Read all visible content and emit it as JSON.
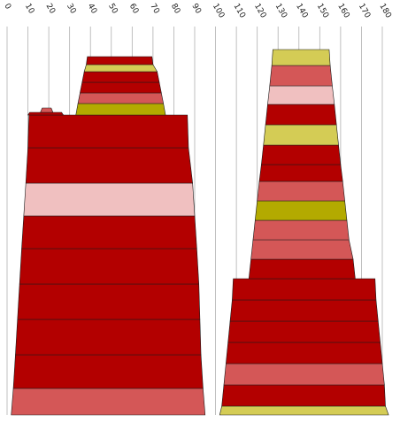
{
  "chart_data": {
    "type": "bar",
    "xlim": [
      0,
      180
    ],
    "x_ticks": [
      0,
      10,
      20,
      30,
      40,
      50,
      60,
      70,
      80,
      90,
      100,
      110,
      120,
      130,
      140,
      150,
      160,
      170,
      180
    ],
    "grid": "vertical",
    "legend": "none",
    "description_of_marks": "stacked layers; each layer spans from x_start to x_end in data units",
    "stacks": [
      {
        "layers": [
          {
            "x_start": 2,
            "x_end": 95,
            "color": "#d45757"
          },
          {
            "x_start": 3,
            "x_end": 94,
            "color": "#b30000"
          },
          {
            "x_start": 4,
            "x_end": 93,
            "color": "#b30000"
          },
          {
            "x_start": 5,
            "x_end": 92.5,
            "color": "#b30000"
          },
          {
            "x_start": 6,
            "x_end": 92,
            "color": "#b30000"
          },
          {
            "x_start": 7,
            "x_end": 91,
            "color": "#b30000"
          },
          {
            "x_start": 8,
            "x_end": 90,
            "color": "#f0c0c0"
          },
          {
            "x_start": 9,
            "x_end": 89,
            "color": "#b30000"
          },
          {
            "x_start": 10,
            "x_end": 87,
            "color": "#b30000"
          },
          {
            "x_start": 33,
            "x_end": 76,
            "color": "#b3aa00"
          },
          {
            "x_start": 34,
            "x_end": 75,
            "color": "#d45757"
          },
          {
            "x_start": 35,
            "x_end": 74,
            "color": "#b30000"
          },
          {
            "x_start": 36,
            "x_end": 73,
            "color": "#b30000"
          },
          {
            "x_start": 37,
            "x_end": 72,
            "color": "#d4cc55"
          },
          {
            "x_start": 38,
            "x_end": 70,
            "color": "#b30000"
          }
        ],
        "cap_marks": [
          {
            "x_start": 10,
            "x_end": 27,
            "color": "#b30000"
          },
          {
            "x_start": 16,
            "x_end": 22,
            "color": "#d45757"
          }
        ]
      },
      {
        "layers": [
          {
            "x_start": 102,
            "x_end": 183,
            "color": "#d4cc55"
          },
          {
            "x_start": 103,
            "x_end": 181.5,
            "color": "#b30000"
          },
          {
            "x_start": 104,
            "x_end": 181,
            "color": "#d45757"
          },
          {
            "x_start": 105,
            "x_end": 180,
            "color": "#b30000"
          },
          {
            "x_start": 106,
            "x_end": 179,
            "color": "#b30000"
          },
          {
            "x_start": 107,
            "x_end": 178,
            "color": "#b30000"
          },
          {
            "x_start": 108,
            "x_end": 177,
            "color": "#b30000"
          },
          {
            "x_start": 116,
            "x_end": 167,
            "color": "#b30000"
          },
          {
            "x_start": 117,
            "x_end": 166,
            "color": "#d45757"
          },
          {
            "x_start": 118,
            "x_end": 164,
            "color": "#d45757"
          },
          {
            "x_start": 119,
            "x_end": 163,
            "color": "#b3aa00"
          },
          {
            "x_start": 120,
            "x_end": 162,
            "color": "#d45757"
          },
          {
            "x_start": 121,
            "x_end": 161,
            "color": "#b30000"
          },
          {
            "x_start": 122,
            "x_end": 160,
            "color": "#b30000"
          },
          {
            "x_start": 123,
            "x_end": 159,
            "color": "#d4cc55"
          },
          {
            "x_start": 124,
            "x_end": 158,
            "color": "#b30000"
          },
          {
            "x_start": 125,
            "x_end": 157,
            "color": "#f0c0c0"
          },
          {
            "x_start": 126,
            "x_end": 156,
            "color": "#d45757"
          },
          {
            "x_start": 127,
            "x_end": 155,
            "color": "#d4cc55"
          }
        ]
      }
    ]
  }
}
